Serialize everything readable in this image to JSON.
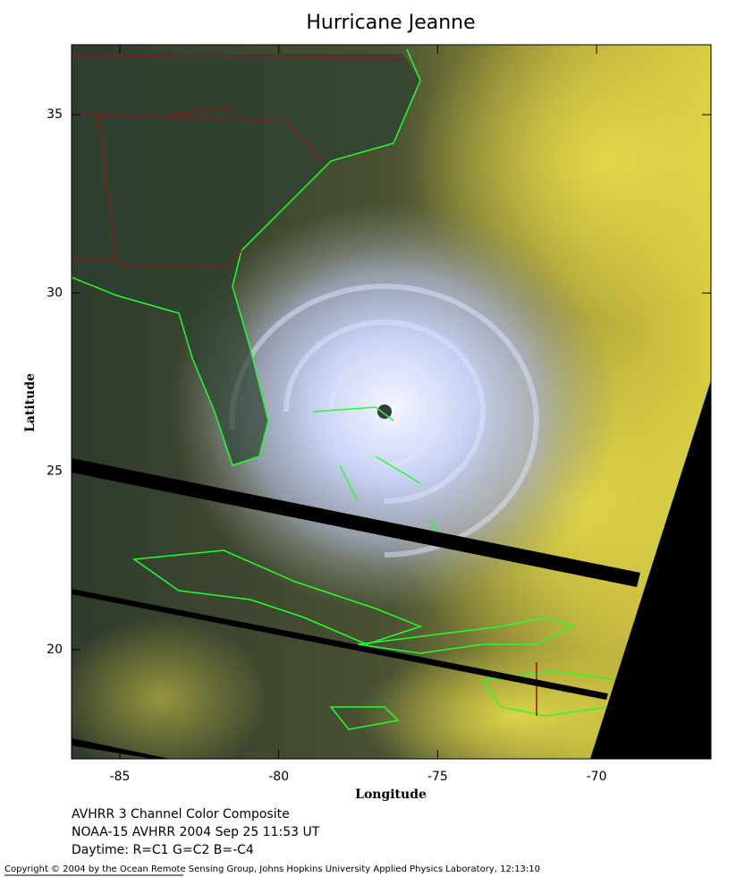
{
  "title": "Hurricane Jeanne",
  "map": {
    "xlabel": "Longitude",
    "ylabel": "Latitude",
    "xlim": [
      -86.52,
      -66.4
    ],
    "ylim": [
      16.94,
      36.96
    ],
    "xticks": [
      -85,
      -80,
      -75,
      -70
    ],
    "yticks": [
      20,
      25,
      30,
      35
    ]
  },
  "caption": [
    "AVHRR 3 Channel Color Composite",
    "NOAA-15 AVHRR 2004 Sep 25 11:53 UT",
    "Daytime: R=C1 G=C2 B=-C4"
  ],
  "copyright": "Copyright © 2004 by the Ocean Remote Sensing Group, Johns Hopkins University Applied Physics Laboratory, 12:13:10"
}
